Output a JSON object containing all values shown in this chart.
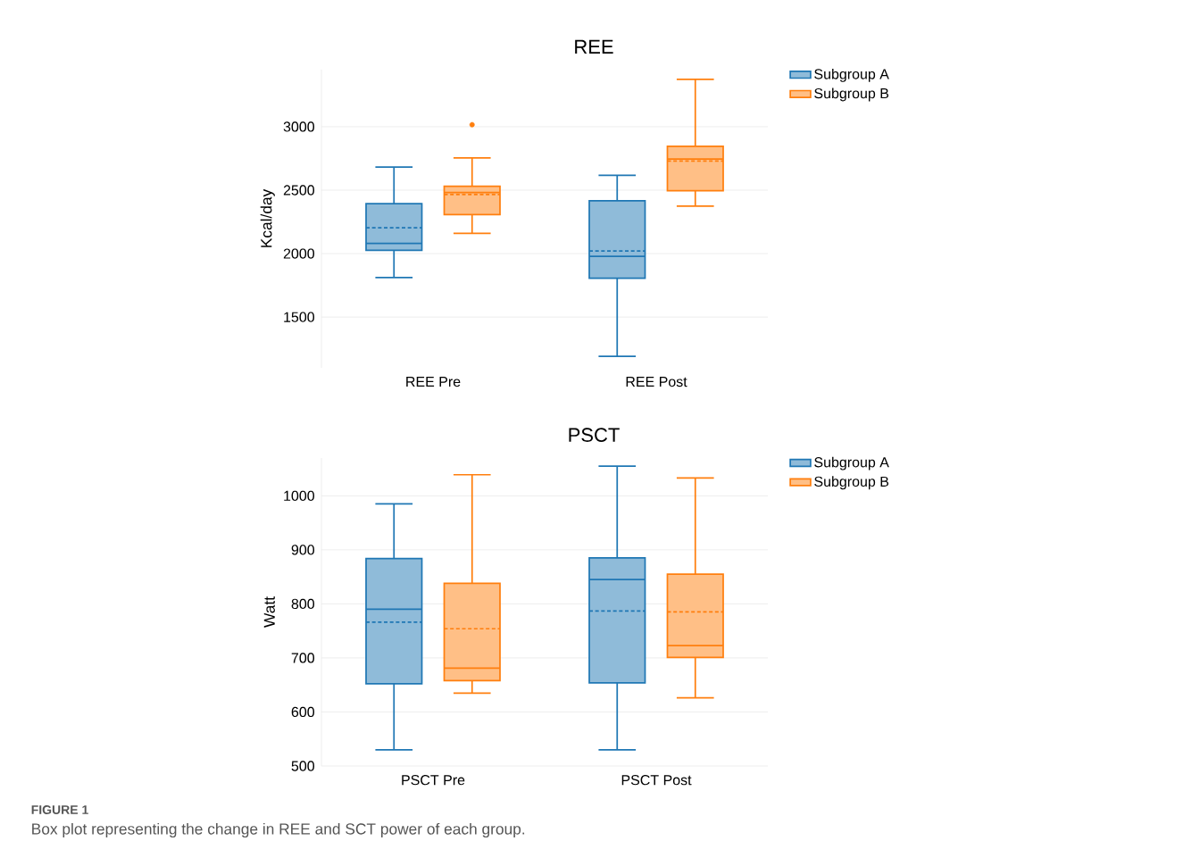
{
  "chart_data": [
    {
      "type": "box",
      "title": "REE",
      "ylabel": "Kcal/day",
      "categories": [
        "REE Pre",
        "REE Post"
      ],
      "ylim": [
        1100,
        3450
      ],
      "yticks": [
        1500,
        2000,
        2500,
        3000
      ],
      "grid": "y",
      "legend": "top right",
      "series": [
        {
          "name": "Subgroup A",
          "color": "#1f77b4",
          "boxes": [
            {
              "low": 1811,
              "q1": 2026,
              "median": 2080,
              "q3": 2393,
              "high": 2682,
              "mean": 2203
            },
            {
              "low": 1190,
              "q1": 1806,
              "median": 1979,
              "q3": 2416,
              "high": 2617,
              "mean": 2021
            }
          ]
        },
        {
          "name": "Subgroup B",
          "color": "#ff7f0e",
          "boxes": [
            {
              "low": 2159,
              "q1": 2308,
              "median": 2481,
              "q3": 2530,
              "high": 2755,
              "mean": 2465,
              "outliers": [
                3016
              ]
            },
            {
              "low": 2374,
              "q1": 2495,
              "median": 2745,
              "q3": 2846,
              "high": 3374,
              "mean": 2729
            }
          ]
        }
      ]
    },
    {
      "type": "box",
      "title": "PSCT",
      "ylabel": "Watt",
      "categories": [
        "PSCT Pre",
        "PSCT Post"
      ],
      "ylim": [
        500,
        1070
      ],
      "yticks": [
        500,
        600,
        700,
        800,
        900,
        1000
      ],
      "grid": "y",
      "legend": "top right",
      "annotations": [
        "FIGURE 1",
        "Box plot representing the change in REE and SCT power of each group."
      ],
      "series": [
        {
          "name": "Subgroup A",
          "color": "#1f77b4",
          "boxes": [
            {
              "low": 530,
              "q1": 652,
              "median": 790,
              "q3": 884,
              "high": 985,
              "mean": 766
            },
            {
              "low": 530,
              "q1": 654,
              "median": 845,
              "q3": 885,
              "high": 1055,
              "mean": 787
            }
          ]
        },
        {
          "name": "Subgroup B",
          "color": "#ff7f0e",
          "boxes": [
            {
              "low": 635,
              "q1": 658,
              "median": 681,
              "q3": 838,
              "high": 1039,
              "mean": 754
            },
            {
              "low": 626,
              "q1": 701,
              "median": 723,
              "q3": 855,
              "high": 1033,
              "mean": 785
            }
          ]
        }
      ]
    }
  ]
}
